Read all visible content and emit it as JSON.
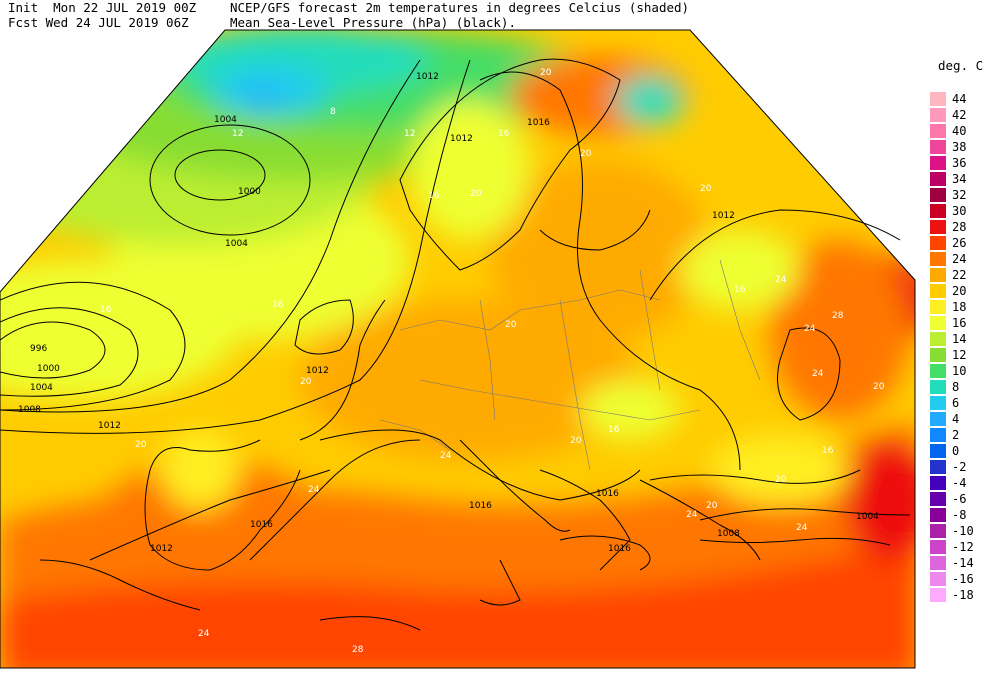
{
  "header": {
    "line1_left": "Init  Mon 22 JUL 2019 00Z",
    "line1_right": "NCEP/GFS forecast 2m temperatures in degrees Celcius (shaded)",
    "line2_left": "Fcst Wed 24 JUL 2019 06Z",
    "line2_right": "Mean Sea-Level Pressure (hPa) (black)."
  },
  "legend": {
    "title": "deg. C",
    "items": [
      {
        "label": "44",
        "color": "#ffb6c1"
      },
      {
        "label": "42",
        "color": "#ff99bb"
      },
      {
        "label": "40",
        "color": "#ff77aa"
      },
      {
        "label": "38",
        "color": "#ee4499"
      },
      {
        "label": "36",
        "color": "#dd1188"
      },
      {
        "label": "34",
        "color": "#bb0066"
      },
      {
        "label": "32",
        "color": "#a00040"
      },
      {
        "label": "30",
        "color": "#cc0022"
      },
      {
        "label": "28",
        "color": "#ee1111"
      },
      {
        "label": "26",
        "color": "#ff4400"
      },
      {
        "label": "24",
        "color": "#ff7700"
      },
      {
        "label": "22",
        "color": "#ffaa00"
      },
      {
        "label": "20",
        "color": "#ffcc00"
      },
      {
        "label": "18",
        "color": "#ffee22"
      },
      {
        "label": "16",
        "color": "#eeff33"
      },
      {
        "label": "14",
        "color": "#bbee33"
      },
      {
        "label": "12",
        "color": "#88dd33"
      },
      {
        "label": "10",
        "color": "#44dd66"
      },
      {
        "label": "8",
        "color": "#22ddbb"
      },
      {
        "label": "6",
        "color": "#22ccee"
      },
      {
        "label": "4",
        "color": "#22aaff"
      },
      {
        "label": "2",
        "color": "#1188ff"
      },
      {
        "label": "0",
        "color": "#0066ee"
      },
      {
        "label": "-2",
        "color": "#2233cc"
      },
      {
        "label": "-4",
        "color": "#4400bb"
      },
      {
        "label": "-6",
        "color": "#6600aa"
      },
      {
        "label": "-8",
        "color": "#880099"
      },
      {
        "label": "-10",
        "color": "#aa22aa"
      },
      {
        "label": "-12",
        "color": "#cc44cc"
      },
      {
        "label": "-14",
        "color": "#dd66dd"
      },
      {
        "label": "-16",
        "color": "#ee88ee"
      },
      {
        "label": "-18",
        "color": "#ffaaff"
      }
    ]
  },
  "isobar_labels": [
    "1012",
    "1004",
    "1000",
    "1004",
    "996",
    "1000",
    "1004",
    "1008",
    "1012",
    "1012",
    "1016",
    "1012",
    "1016",
    "1016",
    "1016",
    "1016",
    "1012",
    "1008",
    "1004",
    "1012"
  ],
  "temp_labels": [
    "8",
    "12",
    "12",
    "16",
    "20",
    "16",
    "20",
    "16",
    "20",
    "24",
    "28",
    "24",
    "20",
    "24",
    "20",
    "24",
    "20",
    "16",
    "20",
    "20",
    "24",
    "24",
    "24",
    "28",
    "20",
    "24",
    "16",
    "16",
    "20",
    "20",
    "16"
  ]
}
